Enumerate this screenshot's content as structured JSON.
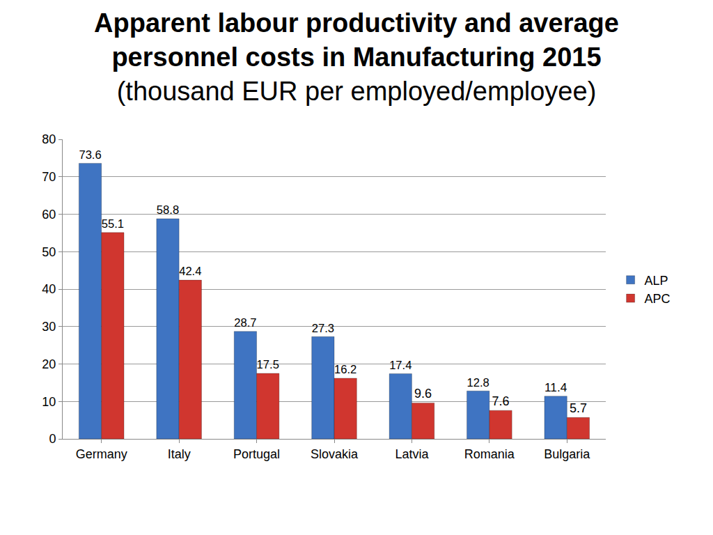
{
  "chart_data": {
    "type": "bar",
    "title": "Apparent labour productivity and average personnel costs in Manufacturing 2015",
    "subtitle": "(thousand EUR per employed/employee)",
    "categories": [
      "Germany",
      "Italy",
      "Portugal",
      "Slovakia",
      "Latvia",
      "Romania",
      "Bulgaria"
    ],
    "series": [
      {
        "name": "ALP",
        "color": "#3f74c2",
        "values": [
          73.6,
          58.8,
          28.7,
          27.3,
          17.4,
          12.8,
          11.4
        ]
      },
      {
        "name": "APC",
        "color": "#d0362f",
        "values": [
          55.1,
          42.4,
          17.5,
          16.2,
          9.6,
          7.6,
          5.7
        ]
      }
    ],
    "ylim": [
      0,
      80
    ],
    "yticks": [
      0,
      10,
      20,
      30,
      40,
      50,
      60,
      70,
      80
    ],
    "grid": true,
    "legend": "right",
    "data_labels": true
  }
}
